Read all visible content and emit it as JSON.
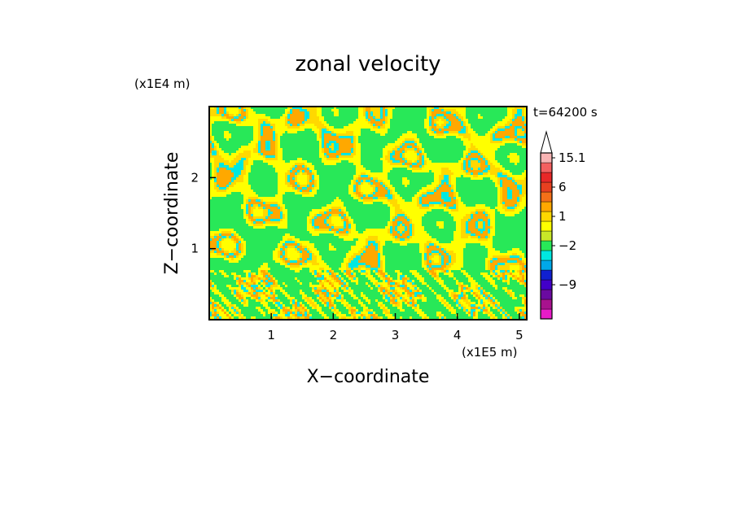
{
  "chart_data": {
    "type": "heatmap",
    "title": "zonal velocity",
    "xlabel": "X−coordinate",
    "ylabel": "Z−coordinate",
    "x_unit": "(x1E5 m)",
    "y_unit": "(x1E4 m)",
    "time_label": "t=64200 s",
    "xlim": [
      0,
      5.12
    ],
    "ylim": [
      0,
      3.0
    ],
    "x_ticks": [
      1,
      2,
      3,
      4,
      5
    ],
    "y_ticks": [
      1,
      2
    ],
    "grid": false,
    "legend": "right-colorbar",
    "colorbar": {
      "bins": [
        {
          "color": "#e81cc8"
        },
        {
          "color": "#a8128e"
        },
        {
          "color": "#6a0aa0"
        },
        {
          "color": "#4200c8"
        },
        {
          "color": "#1020d0"
        },
        {
          "color": "#00a8e8"
        },
        {
          "color": "#00e8e0"
        },
        {
          "color": "#28e858"
        },
        {
          "color": "#c8e828"
        },
        {
          "color": "#ffff00"
        },
        {
          "color": "#ffd800"
        },
        {
          "color": "#ffa800"
        },
        {
          "color": "#f47018"
        },
        {
          "color": "#e84020"
        },
        {
          "color": "#e82828"
        },
        {
          "color": "#f46060"
        },
        {
          "color": "#f8b4b4"
        },
        {
          "color": "#ffffff"
        }
      ],
      "labels": [
        {
          "text": "15.1",
          "bin": 16
        },
        {
          "text": "6",
          "bin": 13
        },
        {
          "text": "1",
          "bin": 10
        },
        {
          "text": "−2",
          "bin": 7
        },
        {
          "text": "−9",
          "bin": 3
        }
      ]
    },
    "field_levels": [
      {
        "color": "#28e858",
        "fraction": 0.35
      },
      {
        "color": "#ffff00",
        "fraction": 0.38
      },
      {
        "color": "#ffd800",
        "fraction": 0.13
      },
      {
        "color": "#00e8e0",
        "fraction": 0.06
      },
      {
        "color": "#ffa800",
        "fraction": 0.04
      },
      {
        "color": "#1020d0",
        "fraction": 0.02
      },
      {
        "color": "#e84020",
        "fraction": 0.02
      }
    ]
  }
}
